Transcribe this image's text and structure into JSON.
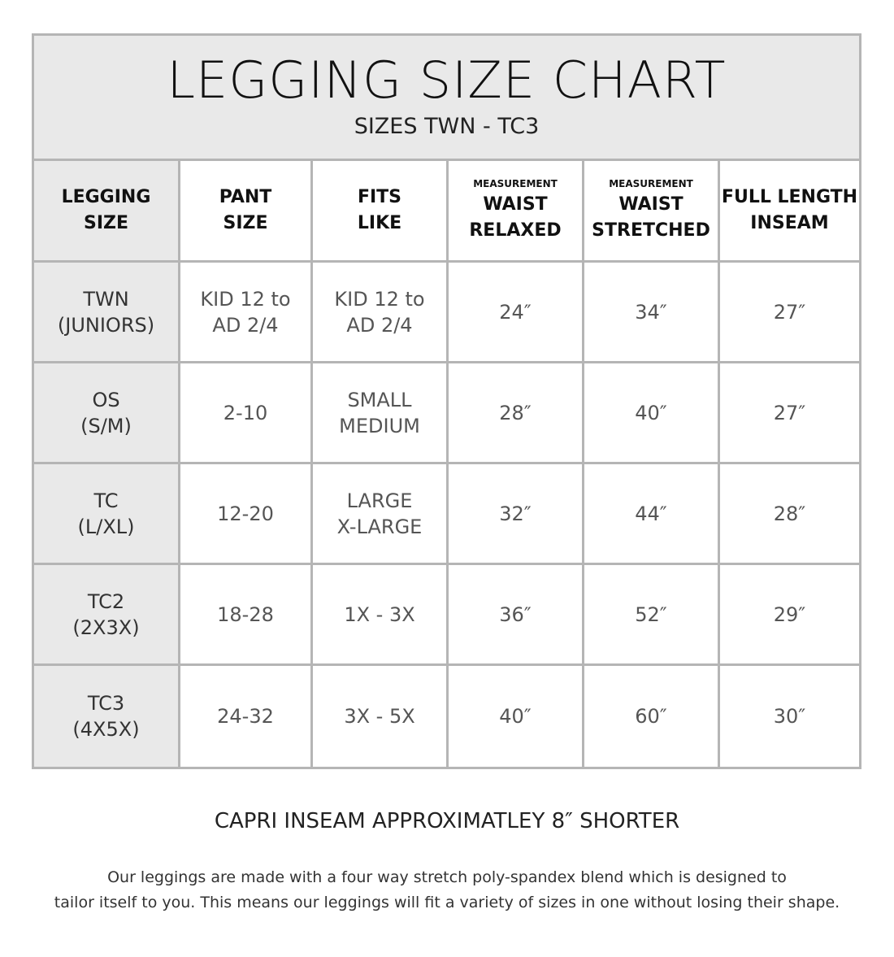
{
  "title": "LEGGING SIZE CHART",
  "subtitle": "SIZES TWN - TC3",
  "headers": [
    {
      "small": "",
      "lines": [
        "LEGGING",
        "SIZE"
      ]
    },
    {
      "small": "",
      "lines": [
        "PANT",
        "SIZE"
      ]
    },
    {
      "small": "",
      "lines": [
        "FITS",
        "LIKE"
      ]
    },
    {
      "small": "MEASUREMENT",
      "lines": [
        "WAIST",
        "RELAXED"
      ]
    },
    {
      "small": "MEASUREMENT",
      "lines": [
        "WAIST",
        "STRETCHED"
      ]
    },
    {
      "small": "",
      "lines": [
        "FULL LENGTH",
        "INSEAM"
      ]
    }
  ],
  "rows": [
    [
      [
        "TWN",
        "(JUNIORS)"
      ],
      [
        "KID 12 to",
        "AD 2/4"
      ],
      [
        "KID 12 to",
        "AD 2/4"
      ],
      [
        "24″"
      ],
      [
        "34″"
      ],
      [
        "27″"
      ]
    ],
    [
      [
        "OS",
        "(S/M)"
      ],
      [
        "2-10"
      ],
      [
        "SMALL",
        "MEDIUM"
      ],
      [
        "28″"
      ],
      [
        "40″"
      ],
      [
        "27″"
      ]
    ],
    [
      [
        "TC",
        "(L/XL)"
      ],
      [
        "12-20"
      ],
      [
        "LARGE",
        "X-LARGE"
      ],
      [
        "32″"
      ],
      [
        "44″"
      ],
      [
        "28″"
      ]
    ],
    [
      [
        "TC2",
        "(2X3X)"
      ],
      [
        "18-28"
      ],
      [
        "1X - 3X"
      ],
      [
        "36″"
      ],
      [
        "52″"
      ],
      [
        "29″"
      ]
    ],
    [
      [
        "TC3",
        "(4X5X)"
      ],
      [
        "24-32"
      ],
      [
        "3X - 5X"
      ],
      [
        "40″"
      ],
      [
        "60″"
      ],
      [
        "30″"
      ]
    ]
  ],
  "note": "CAPRI INSEAM APPROXIMATLEY 8″ SHORTER",
  "description": [
    "Our leggings are made with a four way stretch poly-spandex blend which is designed to",
    "tailor itself to you. This means our leggings will fit a variety of sizes in one without losing their shape."
  ],
  "colors": {
    "border": "#b5b5b5",
    "shade": "#e9e9e9"
  }
}
